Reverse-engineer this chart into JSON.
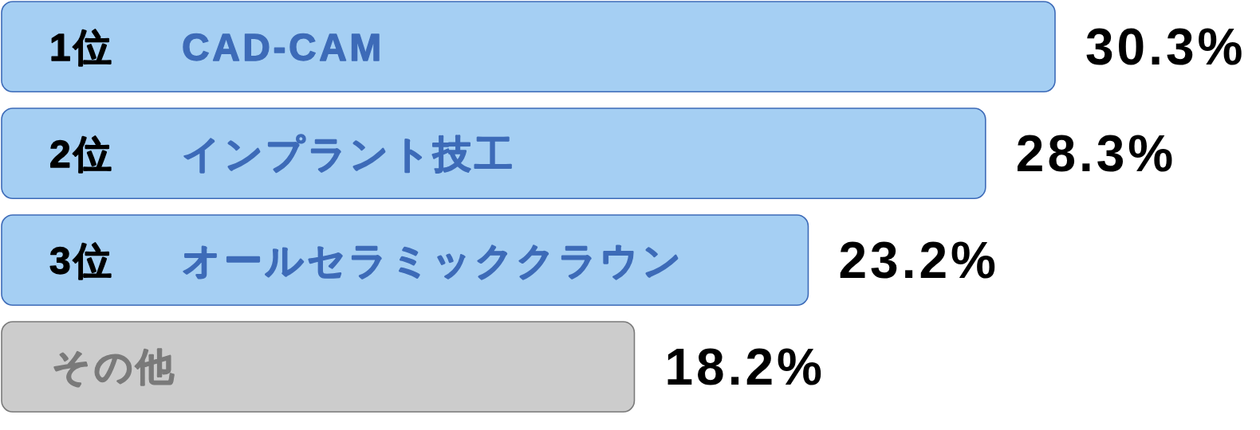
{
  "chart_data": {
    "type": "bar",
    "orientation": "horizontal",
    "categories": [
      "1位　CAD-CAM",
      "2位　インプラント技工",
      "3位　オールセラミッククラウン",
      "その他"
    ],
    "values": [
      30.3,
      28.3,
      23.2,
      18.2
    ],
    "value_labels": [
      "30.3%",
      "28.3%",
      "23.2%",
      "18.2%"
    ],
    "colors": [
      "#a5cff3",
      "#a5cff3",
      "#a5cff3",
      "#cccccc"
    ]
  }
}
